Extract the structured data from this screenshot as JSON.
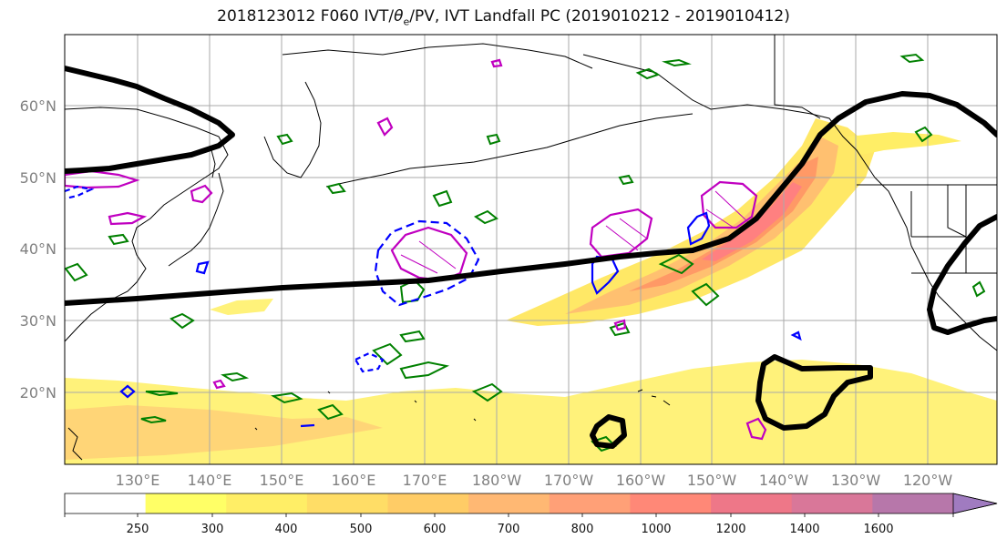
{
  "title": "2018123012 F060 IVT/θe/PV, IVT Landfall PC (2019010212 - 2019010412)",
  "title_parts": {
    "pre": "2018123012 F060 IVT/",
    "sym": "θ",
    "sub": "e",
    "post": "/PV, IVT Landfall PC (2019010212 - 2019010412)"
  },
  "lat_labels": [
    "60°N",
    "50°N",
    "40°N",
    "30°N",
    "20°N"
  ],
  "lon_labels": [
    "130°E",
    "140°E",
    "150°E",
    "160°E",
    "170°E",
    "180°W",
    "170°W",
    "160°W",
    "150°W",
    "140°W",
    "130°W",
    "120°W"
  ],
  "colorbar": {
    "ticks": [
      "250",
      "300",
      "400",
      "500",
      "600",
      "700",
      "800",
      "1000",
      "1200",
      "1400",
      "1600"
    ],
    "colors": [
      "#ffffff",
      "#ffff66",
      "#ffee66",
      "#ffdd66",
      "#ffcc66",
      "#ffb873",
      "#ffa077",
      "#ff8877",
      "#ee7788",
      "#d97799",
      "#b777aa",
      "#a07bc0"
    ]
  },
  "colors": {
    "ivt_fill": "#ffe866",
    "ivt_core": "#ff9966",
    "pv_contour": "#008000",
    "theta_contour": "#c000c0",
    "landfall_contour": "#0000ff",
    "pc_line": "#000000",
    "grid": "#aaaaaa"
  }
}
